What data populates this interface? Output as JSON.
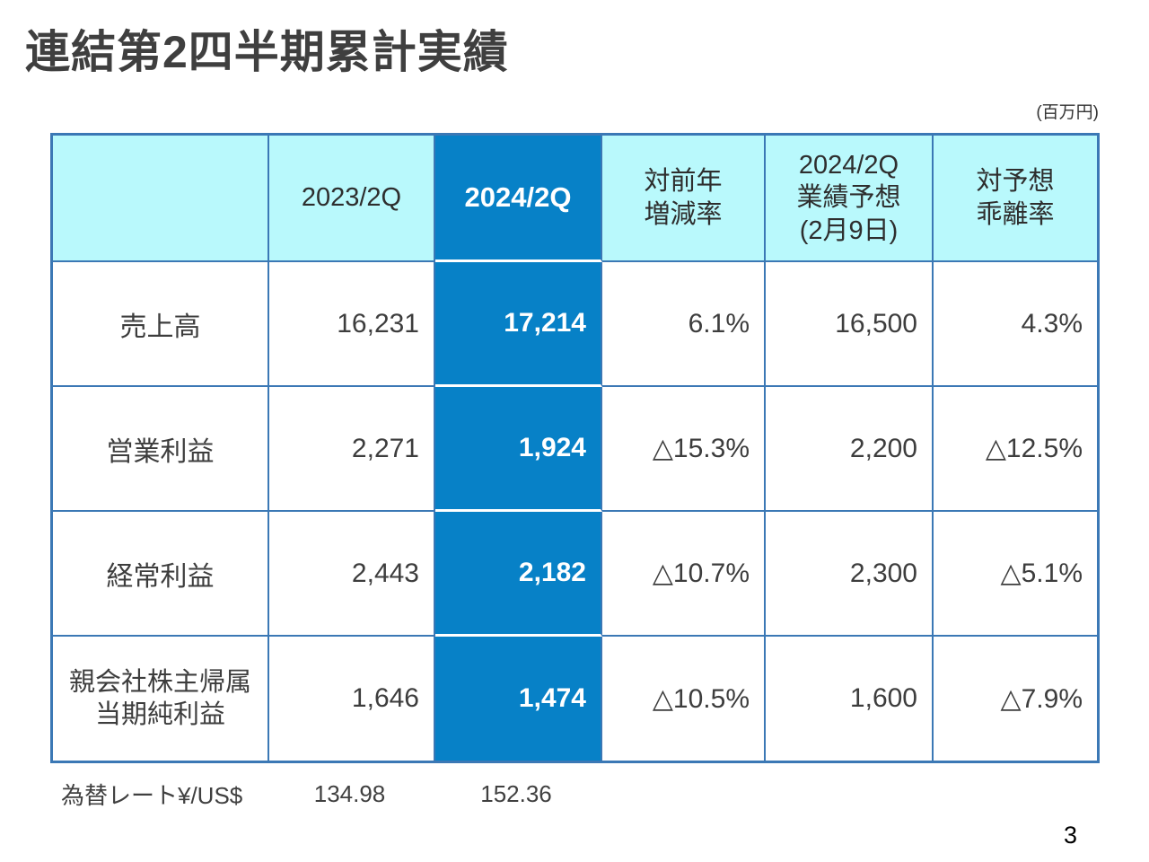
{
  "slide": {
    "title": "連結第2四半期累計実績",
    "unit_note": "(百万円)",
    "page_number": "3"
  },
  "colors": {
    "header_cyan": "#b9f9fc",
    "highlight_blue": "#0781c7",
    "border_blue": "#3b78b5",
    "title_gray": "#3f3f3f"
  },
  "table": {
    "headers": {
      "item": "",
      "fy2023": "2023/2Q",
      "fy2024": "2024/2Q",
      "yoy": "対前年\n増減率",
      "forecast": "2024/2Q\n業績予想\n(2月9日)",
      "vs_forecast": "対予想\n乖離率"
    },
    "rows": [
      {
        "label": "売上高",
        "fy2023": "16,231",
        "fy2024": "17,214",
        "yoy": "6.1%",
        "forecast": "16,500",
        "vs_forecast": "4.3%"
      },
      {
        "label": "営業利益",
        "fy2023": "2,271",
        "fy2024": "1,924",
        "yoy": "△15.3%",
        "forecast": "2,200",
        "vs_forecast": "△12.5%"
      },
      {
        "label": "経常利益",
        "fy2023": "2,443",
        "fy2024": "2,182",
        "yoy": "△10.7%",
        "forecast": "2,300",
        "vs_forecast": "△5.1%"
      },
      {
        "label": "親会社株主帰属\n当期純利益",
        "fy2023": "1,646",
        "fy2024": "1,474",
        "yoy": "△10.5%",
        "forecast": "1,600",
        "vs_forecast": "△7.9%"
      }
    ],
    "fx": {
      "label": "為替レート¥/US$",
      "fy2023": "134.98",
      "fy2024": "152.36"
    }
  }
}
